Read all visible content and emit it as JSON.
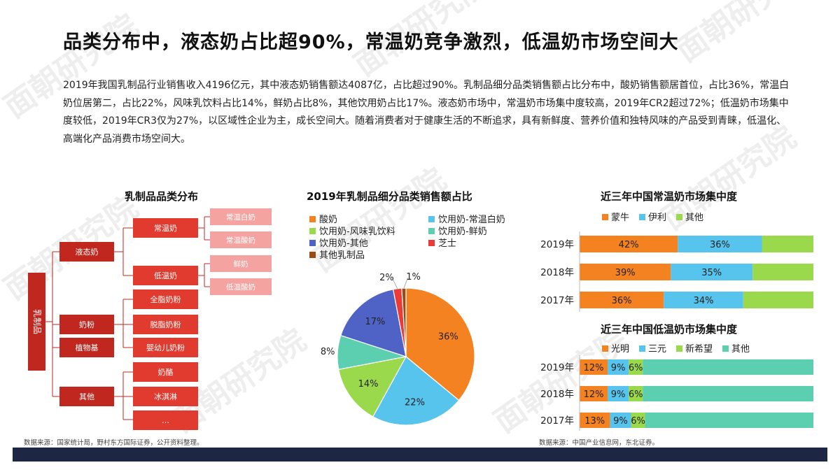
{
  "page": {
    "title": "品类分布中，液态奶占比超90%，常温奶竞争激烈，低温奶市场空间大",
    "intro": "2019年我国乳制品行业销售收入4196亿元，其中液态奶销售额达4087亿，占比超过90%。乳制品细分品类销售额占比分布中，酸奶销售额居首位，占比36%，常温白奶位居第二，占比22%，风味乳饮料占比14%，鲜奶占比8%，其他饮用奶占比17%。液态奶市场中，常温奶市场集中度较高，2019年CR2超过72%；低温奶市场集中度较低，2019年CR3仅为27%，以区域性企业为主，成长空间大。随着消费者对于健康生活的不断追求，具有新鲜度、营养价值和独特风味的产品受到青睐，低温化、高端化产品消费市场空间大。",
    "watermark": "面朝研究院",
    "source_left": "数据来源：国家统计局，野村东方国际证券，公开资料整理。",
    "source_right": "数据来源：中国产业信息网，东北证券。"
  },
  "colors": {
    "dark_red": "#c0281f",
    "mid_red": "#e03b2e",
    "pink": "#f4a3a0",
    "orange": "#f58220",
    "sky": "#56c4ec",
    "lime": "#9ad94c",
    "teal": "#5ccfb0",
    "indigo": "#4f63c6",
    "red": "#ea3b37",
    "brown": "#9a4a12",
    "navy": "#1d2744"
  },
  "tree": {
    "title": "乳制品品类分布",
    "root": "乳制品",
    "level1": [
      "液态奶",
      "奶粉",
      "植物基",
      "其他"
    ],
    "level2": [
      "常温奶",
      "低温奶",
      "全脂奶粉",
      "脱脂奶粉",
      "婴幼儿奶粉",
      "奶酪",
      "冰淇淋",
      "…"
    ],
    "level3": [
      "常温白奶",
      "常温酸奶",
      "鲜奶",
      "低温酸奶"
    ]
  },
  "chart_data": [
    {
      "type": "pie",
      "title": "2019年乳制品细分品类销售额占比",
      "legend_position": "top",
      "series": [
        {
          "name": "酸奶",
          "value": 36,
          "label": "36%",
          "color": "#f58220"
        },
        {
          "name": "饮用奶-常温白奶",
          "value": 22,
          "label": "22%",
          "color": "#56c4ec"
        },
        {
          "name": "饮用奶-风味乳饮料",
          "value": 14,
          "label": "14%",
          "color": "#9ad94c"
        },
        {
          "name": "饮用奶-鲜奶",
          "value": 8,
          "label": "8%",
          "color": "#5ccfb0"
        },
        {
          "name": "饮用奶-其他",
          "value": 17,
          "label": "17%",
          "color": "#4f63c6"
        },
        {
          "name": "芝士",
          "value": 2,
          "label": "2%",
          "color": "#ea3b37"
        },
        {
          "name": "其他乳制品",
          "value": 1,
          "label": "1%",
          "color": "#9a4a12"
        }
      ]
    },
    {
      "type": "bar",
      "stacked": true,
      "orientation": "horizontal",
      "title": "近三年中国常温奶市场集中度",
      "legend_position": "top",
      "categories": [
        "2019年",
        "2018年",
        "2017年"
      ],
      "xlim": [
        0,
        100
      ],
      "series": [
        {
          "name": "蒙牛",
          "values": [
            42,
            39,
            36
          ],
          "labels": [
            "42%",
            "39%",
            "36%"
          ],
          "color": "#f58220"
        },
        {
          "name": "伊利",
          "values": [
            36,
            35,
            34
          ],
          "labels": [
            "36%",
            "35%",
            "34%"
          ],
          "color": "#56c4ec"
        },
        {
          "name": "其他",
          "values": [
            22,
            26,
            30
          ],
          "labels": [
            "",
            "",
            ""
          ],
          "color": "#9ad94c"
        }
      ]
    },
    {
      "type": "bar",
      "stacked": true,
      "orientation": "horizontal",
      "title": "近三年中国低温奶市场集中度",
      "legend_position": "top",
      "categories": [
        "2019年",
        "2018年",
        "2017年"
      ],
      "xlim": [
        0,
        100
      ],
      "series": [
        {
          "name": "光明",
          "values": [
            12,
            12,
            13
          ],
          "labels": [
            "12%",
            "12%",
            "13%"
          ],
          "color": "#f58220"
        },
        {
          "name": "三元",
          "values": [
            9,
            9,
            9
          ],
          "labels": [
            "9%",
            "9%",
            "9%"
          ],
          "color": "#56c4ec"
        },
        {
          "name": "新希望",
          "values": [
            6,
            6,
            6
          ],
          "labels": [
            "6%",
            "6%",
            "6%"
          ],
          "color": "#9ad94c"
        },
        {
          "name": "其他",
          "values": [
            73,
            73,
            72
          ],
          "labels": [
            "",
            "",
            ""
          ],
          "color": "#5ccfb0"
        }
      ]
    }
  ]
}
